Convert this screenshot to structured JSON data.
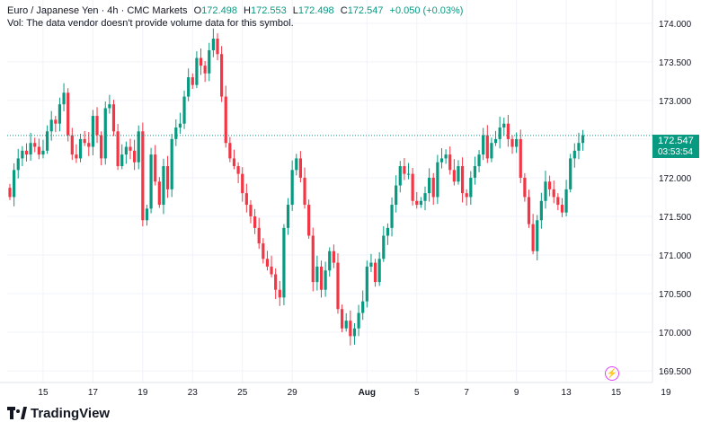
{
  "header": {
    "symbol_line": "Euro / Japanese Yen · 4h · CMC Markets",
    "open_label": "O",
    "open_value": "172.498",
    "high_label": "H",
    "high_value": "172.553",
    "low_label": "L",
    "low_value": "172.498",
    "close_label": "C",
    "close_value": "172.547",
    "change": "+0.050 (+0.03%)",
    "volume_note": "Vol: The data vendor doesn't provide volume data for this symbol."
  },
  "price_label": {
    "price": "172.547",
    "timer": "03:53:54"
  },
  "branding": {
    "logo_text": "TradingView"
  },
  "colors": {
    "up": "#089981",
    "down": "#f23645",
    "grid": "#f0f3fa",
    "last_price_line": "#089981",
    "text": "#131722"
  },
  "chart_data": {
    "type": "candlestick",
    "title": "",
    "xlabel": "",
    "ylabel": "",
    "ylim": [
      169.35,
      174.3
    ],
    "y_ticks": [
      169.5,
      170.0,
      170.5,
      171.0,
      171.5,
      172.0,
      172.5,
      173.0,
      173.5,
      174.0
    ],
    "y_tick_labels": [
      "169.500",
      "170.000",
      "170.500",
      "171.000",
      "171.500",
      "172.000",
      "172.500",
      "173.000",
      "173.500",
      "174.000"
    ],
    "x_tick_labels": [
      {
        "label": "15",
        "index": 8
      },
      {
        "label": "17",
        "index": 20
      },
      {
        "label": "19",
        "index": 32
      },
      {
        "label": "23",
        "index": 44
      },
      {
        "label": "25",
        "index": 56
      },
      {
        "label": "29",
        "index": 68
      },
      {
        "label": "Aug",
        "index": 86
      },
      {
        "label": "5",
        "index": 98
      },
      {
        "label": "7",
        "index": 110
      },
      {
        "label": "9",
        "index": 122
      },
      {
        "label": "13",
        "index": 134
      },
      {
        "label": "15",
        "index": 146
      },
      {
        "label": "19",
        "index": 158
      }
    ],
    "last_price": 172.547,
    "grid": true,
    "closes": [
      171.75,
      172.1,
      172.25,
      172.35,
      172.3,
      172.45,
      172.4,
      172.3,
      172.35,
      172.6,
      172.75,
      172.7,
      172.95,
      173.1,
      172.55,
      172.3,
      172.25,
      172.5,
      172.45,
      172.4,
      172.8,
      172.55,
      172.25,
      172.9,
      172.95,
      172.6,
      172.15,
      172.3,
      172.4,
      172.35,
      172.2,
      172.6,
      171.45,
      171.6,
      172.3,
      171.95,
      171.65,
      172.15,
      171.85,
      172.5,
      172.65,
      172.7,
      173.05,
      173.3,
      173.2,
      173.55,
      173.45,
      173.35,
      173.65,
      173.8,
      173.6,
      173.05,
      172.45,
      172.25,
      172.15,
      172.05,
      171.8,
      171.65,
      171.5,
      171.35,
      171.15,
      170.95,
      170.85,
      170.75,
      170.55,
      170.45,
      171.35,
      171.65,
      172.1,
      172.25,
      172.0,
      171.65,
      171.25,
      170.65,
      170.85,
      170.55,
      170.8,
      171.05,
      170.9,
      170.3,
      170.05,
      170.15,
      169.95,
      170.05,
      170.25,
      170.4,
      170.85,
      170.9,
      170.65,
      170.95,
      171.25,
      171.35,
      171.65,
      171.9,
      172.15,
      172.05,
      172.05,
      171.7,
      171.65,
      171.7,
      171.8,
      172.0,
      171.75,
      172.2,
      172.25,
      172.3,
      172.1,
      171.95,
      172.15,
      171.8,
      171.75,
      172.0,
      172.15,
      172.3,
      172.55,
      172.25,
      172.45,
      172.5,
      172.65,
      172.7,
      172.5,
      172.4,
      172.5,
      172.0,
      171.75,
      171.4,
      171.05,
      171.45,
      171.7,
      171.95,
      171.85,
      171.75,
      171.65,
      171.55,
      171.85,
      172.25,
      172.35,
      172.45,
      172.55
    ]
  }
}
